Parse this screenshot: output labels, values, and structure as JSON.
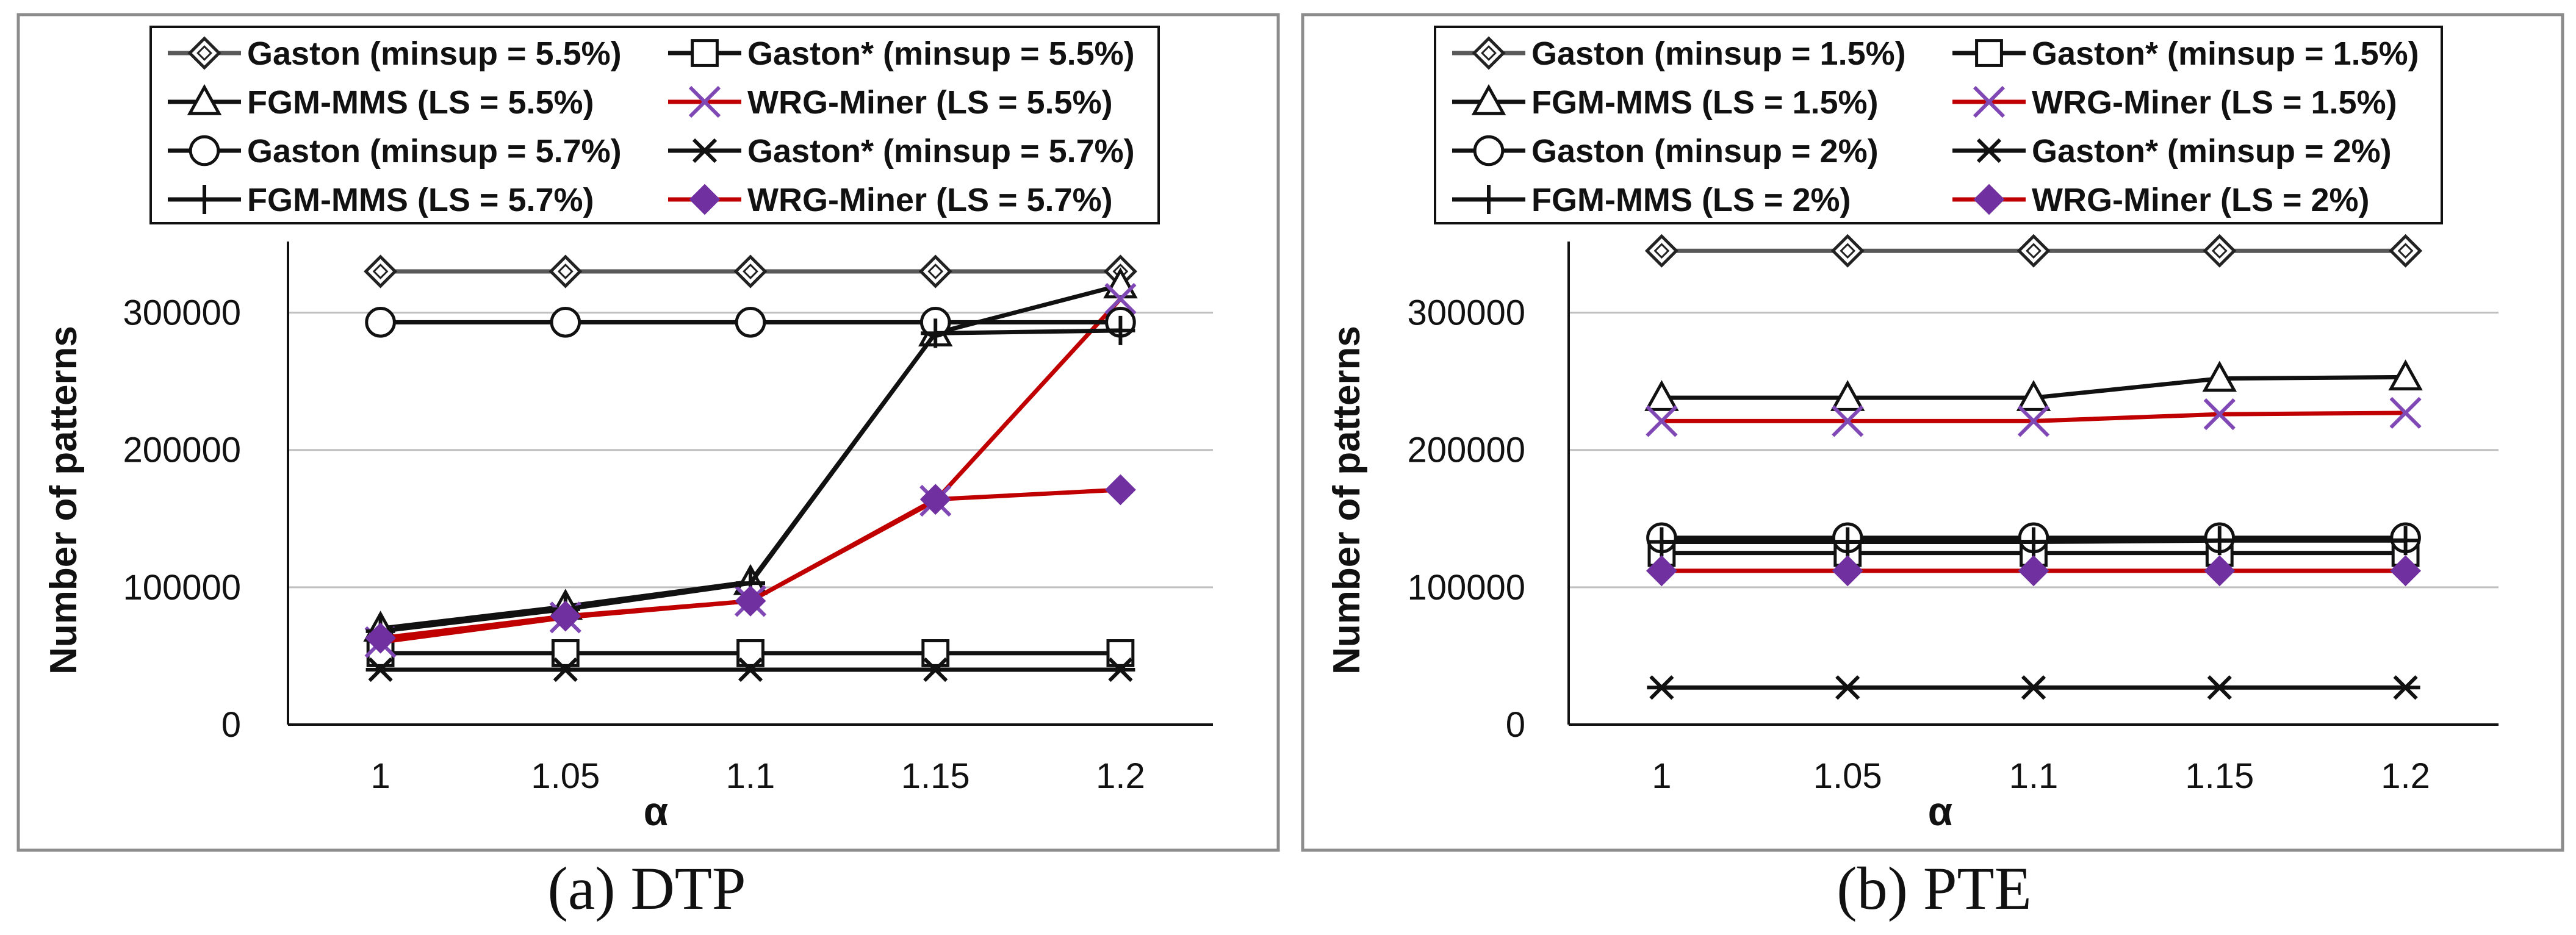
{
  "colors": {
    "black": "#111111",
    "gray": "#595959",
    "red": "#c00000",
    "purple": "#7030a0",
    "cross": "#7f48b4",
    "grid": "#bfbfbf",
    "frame": "#8c8c8c"
  },
  "chart_data": [
    {
      "type": "line",
      "caption": "(a) DTP",
      "xlabel": "α",
      "ylabel": "Number of patterns",
      "categories": [
        "1",
        "1.05",
        "1.1",
        "1.15",
        "1.2"
      ],
      "ylim": [
        0,
        350000
      ],
      "yticks": [
        0,
        100000,
        200000,
        300000
      ],
      "ytick_labels": [
        "0",
        "100000",
        "200000",
        "300000"
      ],
      "legend": [
        "Gaston (minsup = 5.5%)",
        "Gaston* (minsup = 5.5%)",
        "FGM-MMS (LS = 5.5%)",
        "WRG-Miner (LS = 5.5%)",
        "Gaston (minsup = 5.7%)",
        "Gaston* (minsup = 5.7%)",
        "FGM-MMS (LS = 5.7%)",
        "WRG-Miner (LS = 5.7%)"
      ],
      "series": [
        {
          "name": "Gaston (minsup = 5.5%)",
          "marker": "diamond",
          "color": "#595959",
          "values": [
            330000,
            330000,
            330000,
            330000,
            330000
          ]
        },
        {
          "name": "Gaston* (minsup = 5.5%)",
          "marker": "square",
          "color": "#111111",
          "values": [
            52000,
            52000,
            52000,
            52000,
            52000
          ]
        },
        {
          "name": "FGM-MMS (LS = 5.5%)",
          "marker": "triangle",
          "color": "#111111",
          "values": [
            70000,
            86000,
            104000,
            285000,
            320000
          ]
        },
        {
          "name": "WRG-Miner (LS = 5.5%)",
          "marker": "x",
          "color": "#c00000",
          "values": [
            60000,
            78000,
            90000,
            163000,
            310000
          ]
        },
        {
          "name": "Gaston (minsup = 5.7%)",
          "marker": "circle",
          "color": "#111111",
          "values": [
            293000,
            293000,
            293000,
            293000,
            293000
          ]
        },
        {
          "name": "Gaston* (minsup = 5.7%)",
          "marker": "star",
          "color": "#111111",
          "values": [
            40000,
            40000,
            40000,
            40000,
            40000
          ]
        },
        {
          "name": "FGM-MMS (LS = 5.7%)",
          "marker": "plus",
          "color": "#111111",
          "values": [
            68000,
            84000,
            103000,
            285000,
            287000
          ]
        },
        {
          "name": "WRG-Miner (LS = 5.7%)",
          "marker": "filled-diamond",
          "color": "#c00000",
          "values": [
            63000,
            79000,
            90000,
            164000,
            171000
          ]
        }
      ]
    },
    {
      "type": "line",
      "caption": "(b) PTE",
      "xlabel": "α",
      "ylabel": "Number of patterns",
      "categories": [
        "1",
        "1.05",
        "1.1",
        "1.15",
        "1.2"
      ],
      "ylim": [
        0,
        350000
      ],
      "yticks": [
        0,
        100000,
        200000,
        300000
      ],
      "ytick_labels": [
        "0",
        "100000",
        "200000",
        "300000"
      ],
      "legend": [
        "Gaston (minsup = 1.5%)",
        "Gaston* (minsup = 1.5%)",
        "FGM-MMS (LS = 1.5%)",
        "WRG-Miner (LS = 1.5%)",
        "Gaston (minsup = 2%)",
        "Gaston* (minsup = 2%)",
        "FGM-MMS (LS = 2%)",
        "WRG-Miner (LS = 2%)"
      ],
      "series": [
        {
          "name": "Gaston (minsup = 1.5%)",
          "marker": "diamond",
          "color": "#595959",
          "values": [
            345000,
            345000,
            345000,
            345000,
            345000
          ]
        },
        {
          "name": "Gaston* (minsup = 1.5%)",
          "marker": "square",
          "color": "#111111",
          "values": [
            125000,
            125000,
            125000,
            125000,
            125000
          ]
        },
        {
          "name": "FGM-MMS (LS = 1.5%)",
          "marker": "triangle",
          "color": "#111111",
          "values": [
            238000,
            238000,
            238000,
            252000,
            253000
          ]
        },
        {
          "name": "WRG-Miner (LS = 1.5%)",
          "marker": "x",
          "color": "#c00000",
          "values": [
            221000,
            221000,
            221000,
            226000,
            227000
          ]
        },
        {
          "name": "Gaston (minsup = 2%)",
          "marker": "circle",
          "color": "#111111",
          "values": [
            136000,
            136000,
            136000,
            136000,
            136000
          ]
        },
        {
          "name": "Gaston* (minsup = 2%)",
          "marker": "star",
          "color": "#111111",
          "values": [
            27000,
            27000,
            27000,
            27000,
            27000
          ]
        },
        {
          "name": "FGM-MMS (LS = 2%)",
          "marker": "plus",
          "color": "#111111",
          "values": [
            133000,
            133000,
            133000,
            134000,
            134000
          ]
        },
        {
          "name": "WRG-Miner (LS = 2%)",
          "marker": "filled-diamond",
          "color": "#c00000",
          "values": [
            112000,
            112000,
            112000,
            112000,
            112000
          ]
        }
      ]
    }
  ]
}
